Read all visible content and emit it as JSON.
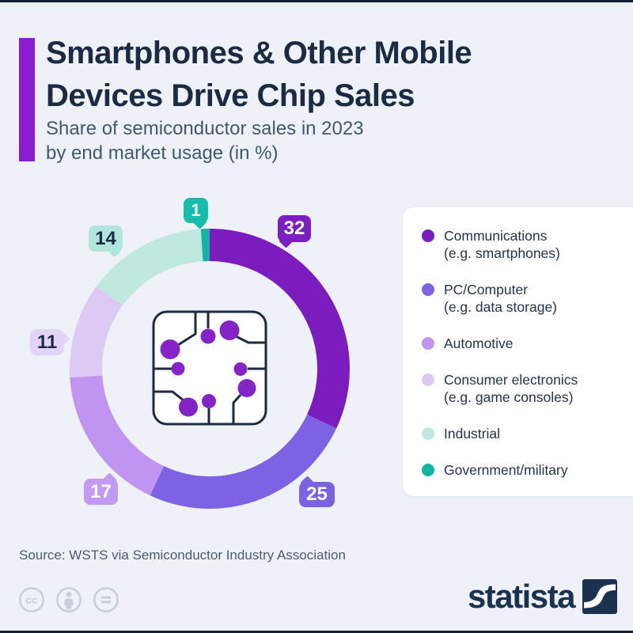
{
  "colors": {
    "page_bg": "#eef2f8",
    "edge_bar": "#111f30",
    "accent_purple": "#8a1dd1",
    "title_text": "#1c2b44",
    "subtitle_text": "#42586f",
    "legend_text": "#23344d",
    "source_text": "#4a5b70",
    "brand_navy": "#1a3150",
    "license_gray": "#c5ced9",
    "chip_circle": "#8424c8",
    "chip_stroke": "#1d2b3e",
    "card_bg": "#ffffff"
  },
  "header": {
    "title_line1": "Smartphones & Other Mobile",
    "title_line2": "Devices Drive Chip Sales",
    "subtitle_line1": "Share of semiconductor sales in 2023",
    "subtitle_line2": "by end market usage (in %)"
  },
  "chart_data": {
    "type": "pie",
    "subtype": "donut",
    "title": "Share of semiconductor sales in 2023 by end market usage (in %)",
    "unit": "%",
    "start_angle_deg": 0,
    "direction": "clockwise",
    "center_icon": "chip-icon",
    "legend_position": "right",
    "segments": [
      {
        "id": "communications",
        "name": "Communications",
        "sub": "(e.g. smartphones)",
        "value": 32,
        "color": "#7a1cbe",
        "bubble_bg": "#7c1fc2",
        "bubble_text": "#ffffff"
      },
      {
        "id": "pc-computer",
        "name": "PC/Computer",
        "sub": "(e.g. data storage)",
        "value": 25,
        "color": "#7d63e4",
        "bubble_bg": "#7b62e0",
        "bubble_text": "#ffffff"
      },
      {
        "id": "automotive",
        "name": "Automotive",
        "sub": "",
        "value": 17,
        "color": "#c095f1",
        "bubble_bg": "#c29af3",
        "bubble_text": "#ffffff"
      },
      {
        "id": "consumer-electronics",
        "name": "Consumer electronics",
        "sub": "(e.g. game consoles)",
        "value": 11,
        "color": "#dccaf5",
        "bubble_bg": "#e3d3f8",
        "bubble_text": "#1b2c45"
      },
      {
        "id": "industrial",
        "name": "Industrial",
        "sub": "",
        "value": 14,
        "color": "#bfe9de",
        "bubble_bg": "#b3e6da",
        "bubble_text": "#1b2c45"
      },
      {
        "id": "government-military",
        "name": "Government/military",
        "sub": "",
        "value": 1,
        "color": "#13b4a2",
        "bubble_bg": "#17bdab",
        "bubble_text": "#ffffff"
      }
    ]
  },
  "footer": {
    "source": "Source: WSTS via Semiconductor Industry Association",
    "brand": "statista",
    "license_icons": [
      "cc-icon",
      "attribution-icon",
      "equals-icon"
    ]
  }
}
